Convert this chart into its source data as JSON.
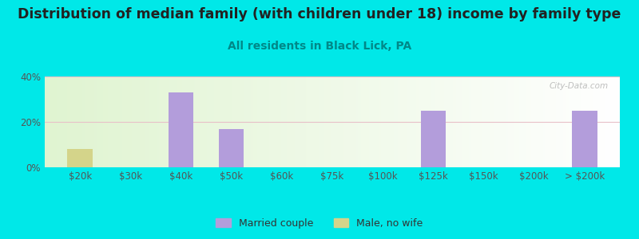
{
  "title": "Distribution of median family (with children under 18) income by family type",
  "subtitle": "All residents in Black Lick, PA",
  "figure_bg_color": "#00e8e8",
  "plot_bg_color": "#eaf5e2",
  "categories": [
    "$20k",
    "$30k",
    "$40k",
    "$50k",
    "$60k",
    "$75k",
    "$100k",
    "$125k",
    "$150k",
    "$200k",
    "> $200k"
  ],
  "married_couple": [
    0,
    0,
    33,
    17,
    0,
    0,
    0,
    25,
    0,
    0,
    25
  ],
  "male_no_wife": [
    8,
    0,
    0,
    0,
    0,
    0,
    0,
    0,
    0,
    0,
    0
  ],
  "married_color": "#b39ddb",
  "male_color": "#d4d48a",
  "ylim": [
    0,
    40
  ],
  "yticks": [
    0,
    20,
    40
  ],
  "ytick_labels": [
    "0%",
    "20%",
    "40%"
  ],
  "title_fontsize": 12.5,
  "subtitle_fontsize": 10,
  "subtitle_color": "#008888",
  "title_color": "#222222",
  "watermark": "City-Data.com",
  "legend_married": "Married couple",
  "legend_male": "Male, no wife",
  "grid_color": "#e8c0c8",
  "grid_linewidth": 0.8,
  "tick_color": "#555555",
  "tick_fontsize": 8.5
}
